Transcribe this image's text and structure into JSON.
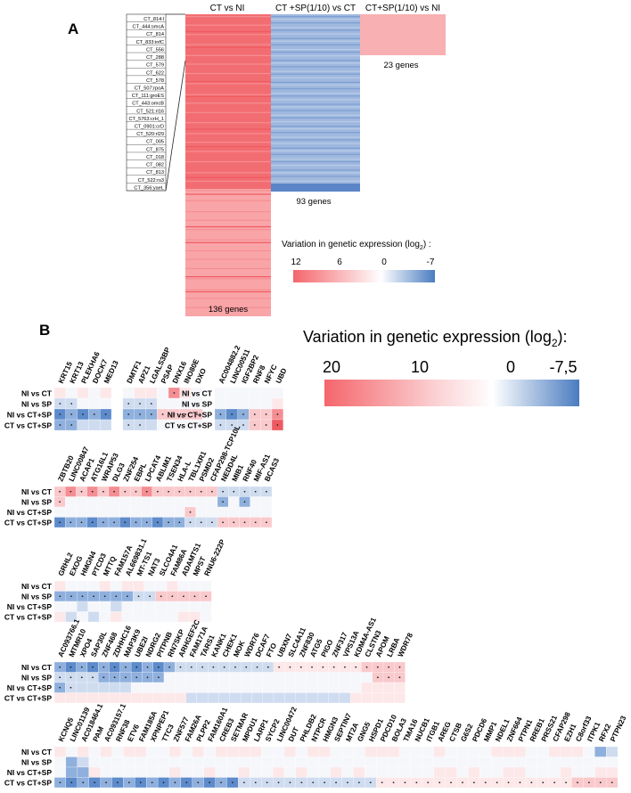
{
  "panel_a": {
    "label": "A",
    "column_headers": [
      "CT vs NI",
      "CT +SP(1/10) vs CT",
      "CT+SP(1/10) vs NI"
    ],
    "gene_counts": [
      "136 genes",
      "93 genes",
      "23 genes"
    ],
    "labels": [
      "CT_814:l",
      "CT_444:smcA",
      "CT_814",
      "CT_833:infC",
      "CT_556",
      "CT_288",
      "CT_579",
      "CT_622",
      "CT_578",
      "CT_507:rpoA",
      "CT_111:groES",
      "CT_443:omcB",
      "CT_521:rl16",
      "CT_5763:crH_1",
      "CT_0901:crD",
      "CT_520:rl29",
      "CT_005",
      "CT_875",
      "CT_018",
      "CT_082",
      "CT_813",
      "CT_522:rs3",
      "CT_356:yaeL"
    ],
    "legend_title": "Variation in genetic expression (log",
    "legend_sub": "2",
    "legend_title_end": ") :",
    "legend_ticks": [
      "12",
      "6",
      "0",
      "-7"
    ]
  },
  "panel_b": {
    "label": "B",
    "legend_title": "Variation in genetic expression (log",
    "legend_sub": "2",
    "legend_title_end": "):",
    "legend_ticks": [
      "20",
      "10",
      "0",
      "-7,5"
    ],
    "row_labels_1": [
      "NI vs CT",
      "NI vs SP",
      "NI vs CT+SP",
      "CT vs CT+SP"
    ],
    "block1_genes": [
      "KRT15",
      "KRT13",
      "PLEKHA6",
      "DOCK7",
      "MED13",
      "DMTF1",
      "APZ1",
      "LGALS3BP",
      "PSAP",
      "DNX16",
      "INO80E",
      "DXO"
    ],
    "block1b_genes": [
      "AC004882.2",
      "LINC00511",
      "IGF2BP2",
      "RNF8",
      "NFYC",
      "UBD"
    ],
    "block2_genes": [
      "ZBTB20",
      "LINC00847",
      "ACAP1",
      "ATG16L1",
      "WRAP53",
      "DLG3",
      "ZNF254",
      "EBPL",
      "LPCAT4",
      "ABLIM1",
      "TSEN34",
      "HLA-L",
      "TBL1XR1",
      "PSMD2",
      "CFAP298-TCP10L",
      "NEDD4L",
      "MIB1",
      "RNF40",
      "MIF-AS1",
      "BCAS3"
    ],
    "block3_genes": [
      "GRHL2",
      "EXOG",
      "HMGN4",
      "PTCD3",
      "MTTQ",
      "FAM157A",
      "AL669831.1",
      "MT-TS1",
      "NAT3",
      "SLCO4A1",
      "FAM86A",
      "ADAMTS1",
      "MPST",
      "RNU6-222P"
    ],
    "block4_genes": [
      "AC093766.1",
      "MTMR10",
      "XPO4",
      "SAP30L",
      "ZNF468",
      "ZDHHC16",
      "MAP3K9",
      "UBE2I",
      "NDRG2",
      "PITPNB",
      "RN7SKP",
      "ARHGEF2C",
      "FAM171A",
      "TARS1",
      "KANK1",
      "CHEK1",
      "MOK",
      "WDR76",
      "DCAF7",
      "FTO",
      "UBXN7",
      "SLC4A11",
      "ZNF830",
      "ATG5",
      "PIGO",
      "ZNF317",
      "VPS13A",
      "KDM4A-AS1",
      "CLSTN3",
      "APOM",
      "LRBA",
      "WDR78"
    ],
    "block5_genes": [
      "KCNQ5",
      "LINC01139",
      "AC018464.1",
      "PAM",
      "AC093157.1",
      "RNF38",
      "ETV6",
      "FAM185A",
      "XPNPEP1",
      "TTC3",
      "ZNF577",
      "FAM26A",
      "PLPP2",
      "FAM160A1",
      "CREB3",
      "SETMAR",
      "MPDU1",
      "LARP1",
      "SYCP2",
      "LINC00472",
      "DUT",
      "PHLDB2",
      "NTPCR",
      "HMGN3",
      "SEPTIN7",
      "MT2A",
      "GNG5",
      "HSPD1",
      "PDCD10",
      "BOLA3",
      "TMA16",
      "NUCB1",
      "ITGB1",
      "AREG",
      "CTSB",
      "G6S2",
      "PDCD6",
      "MMP1",
      "NDEL1",
      "ZNF664",
      "PTPN1",
      "RREB1",
      "PRSS21",
      "CFAP298",
      "EZH1",
      "C8orf33",
      "ITPK1",
      "RFX2",
      "PTPN23"
    ]
  }
}
